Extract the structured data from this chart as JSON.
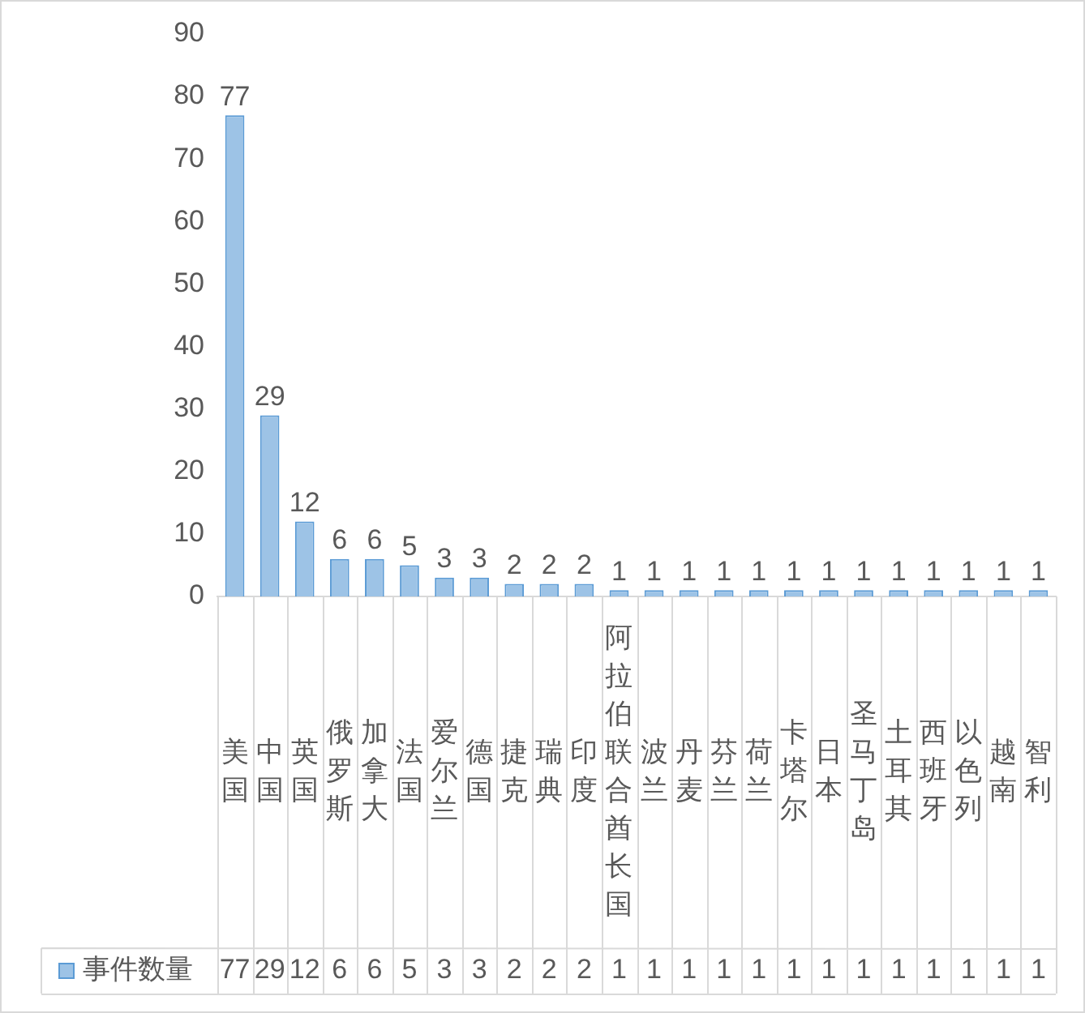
{
  "chart_data": {
    "type": "bar",
    "categories": [
      "美国",
      "中国",
      "英国",
      "俄罗斯",
      "加拿大",
      "法国",
      "爱尔兰",
      "德国",
      "捷克",
      "瑞典",
      "印度",
      "阿拉伯联合酋长国",
      "波兰",
      "丹麦",
      "芬兰",
      "荷兰",
      "卡塔尔",
      "日本",
      "圣马丁岛",
      "土耳其",
      "西班牙",
      "以色列",
      "越南",
      "智利"
    ],
    "series": [
      {
        "name": "事件数量",
        "color": "#9dc3e6",
        "values": [
          77,
          29,
          12,
          6,
          6,
          5,
          3,
          3,
          2,
          2,
          2,
          1,
          1,
          1,
          1,
          1,
          1,
          1,
          1,
          1,
          1,
          1,
          1,
          1
        ],
        "value_labels": [
          "77",
          "29",
          "12",
          "6",
          "6",
          "5",
          "3",
          "3",
          "2",
          "2",
          "2",
          "1",
          "1",
          "1",
          "1",
          "1",
          "1",
          "1",
          "1",
          "1",
          "1",
          "1",
          "1",
          "1"
        ]
      }
    ],
    "annotations": [
      "77",
      "29",
      "12",
      "6",
      "6",
      "5",
      "3",
      "3",
      "2",
      "2",
      "2",
      "1",
      "1",
      "1",
      "1",
      "1",
      "1",
      "1",
      "1",
      "1",
      "1",
      "1",
      "1",
      "1"
    ],
    "ylim": [
      0,
      90
    ],
    "yticks": [
      0,
      10,
      20,
      30,
      40,
      50,
      60,
      70,
      80,
      90
    ],
    "data_labels": true,
    "legend": "bottom",
    "grid": false
  }
}
